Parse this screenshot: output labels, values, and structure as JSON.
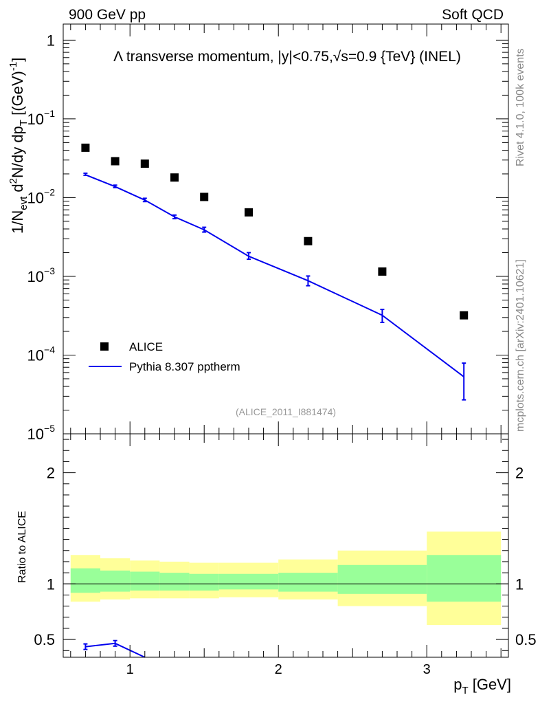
{
  "header": {
    "left": "900 GeV pp",
    "right": "Soft QCD"
  },
  "side_labels": {
    "rivet": "Rivet 4.1.0,  100k events",
    "mcplots": "mcplots.cern.ch [arXiv:2401.10621]"
  },
  "chart_data": [
    {
      "type": "scatter",
      "panel": "main",
      "title": "Λ transverse momentum, |y|<0.75,√s=0.9 {TeV} (INEL)",
      "ylabel": {
        "prefix": "1/N",
        "prefix_sub": "evt",
        "main": " d",
        "main_sup": "2",
        "main2": "N/dy dp",
        "main_sub": "T",
        "unit": " [(GeV)",
        "unit_sup": "-1",
        "unit_end": "]"
      },
      "xlabel": {
        "main": "p",
        "sub": "T",
        "unit": " [GeV]"
      },
      "yscale": "log",
      "ylim": [
        1e-05,
        1.6
      ],
      "xlim": [
        0.55,
        3.55
      ],
      "y_ticks": [
        {
          "value": 1,
          "label": "1",
          "sup": ""
        },
        {
          "value": 0.1,
          "label": "10",
          "sup": "−1"
        },
        {
          "value": 0.01,
          "label": "10",
          "sup": "−2"
        },
        {
          "value": 0.001,
          "label": "10",
          "sup": "−3"
        },
        {
          "value": 0.0001,
          "label": "10",
          "sup": "−4"
        },
        {
          "value": 1e-05,
          "label": "10",
          "sup": "−5"
        }
      ],
      "watermark": "(ALICE_2011_I881474)",
      "legend_position": "bottom-left",
      "series": [
        {
          "name": "ALICE",
          "marker": "square",
          "color": "#000000",
          "x": [
            0.7,
            0.9,
            1.1,
            1.3,
            1.5,
            1.8,
            2.2,
            2.7,
            3.25
          ],
          "y": [
            0.043,
            0.029,
            0.027,
            0.018,
            0.0102,
            0.0065,
            0.0028,
            0.00115,
            0.00032
          ]
        },
        {
          "name": "Pythia 8.307 pptherm",
          "marker": "line",
          "color": "#0000ee",
          "x": [
            0.7,
            0.9,
            1.1,
            1.3,
            1.5,
            1.8,
            2.2,
            2.7,
            3.25
          ],
          "y": [
            0.0195,
            0.0138,
            0.0093,
            0.0057,
            0.0039,
            0.0018,
            0.00088,
            0.00032,
            5.3e-05
          ],
          "err_low": [
            0.0192,
            0.0134,
            0.0089,
            0.0054,
            0.00365,
            0.00165,
            0.00076,
            0.00026,
            2.7e-05
          ],
          "err_high": [
            0.0204,
            0.0144,
            0.0098,
            0.006,
            0.0042,
            0.002,
            0.00101,
            0.00038,
            7.9e-05
          ]
        }
      ]
    },
    {
      "type": "line",
      "panel": "ratio",
      "ylabel": "Ratio to ALICE",
      "ylim": [
        0.34,
        2.35
      ],
      "y_ticks": [
        0.5,
        1,
        2
      ],
      "x_ticks": [
        1,
        2,
        3
      ],
      "band_edges": [
        0.6,
        0.8,
        1.0,
        1.2,
        1.4,
        1.6,
        2.0,
        2.4,
        3.0,
        3.5
      ],
      "band_inner": {
        "color": "#99ff99",
        "lo": [
          0.92,
          0.93,
          0.94,
          0.94,
          0.94,
          0.95,
          0.93,
          0.91,
          0.84
        ],
        "hi": [
          1.14,
          1.12,
          1.11,
          1.1,
          1.09,
          1.09,
          1.1,
          1.17,
          1.26
        ]
      },
      "band_outer": {
        "color": "#ffff99",
        "lo": [
          0.84,
          0.86,
          0.87,
          0.87,
          0.87,
          0.88,
          0.86,
          0.8,
          0.63
        ],
        "hi": [
          1.26,
          1.23,
          1.21,
          1.2,
          1.19,
          1.19,
          1.22,
          1.3,
          1.47
        ]
      },
      "series": [
        {
          "name": "Pythia 8.307 pptherm",
          "color": "#0000ee",
          "x": [
            0.7,
            0.9,
            1.1
          ],
          "y": [
            0.435,
            0.465,
            0.34
          ],
          "err_low": [
            0.41,
            0.44,
            0.34
          ],
          "err_high": [
            0.46,
            0.49,
            0.34
          ]
        }
      ]
    }
  ]
}
